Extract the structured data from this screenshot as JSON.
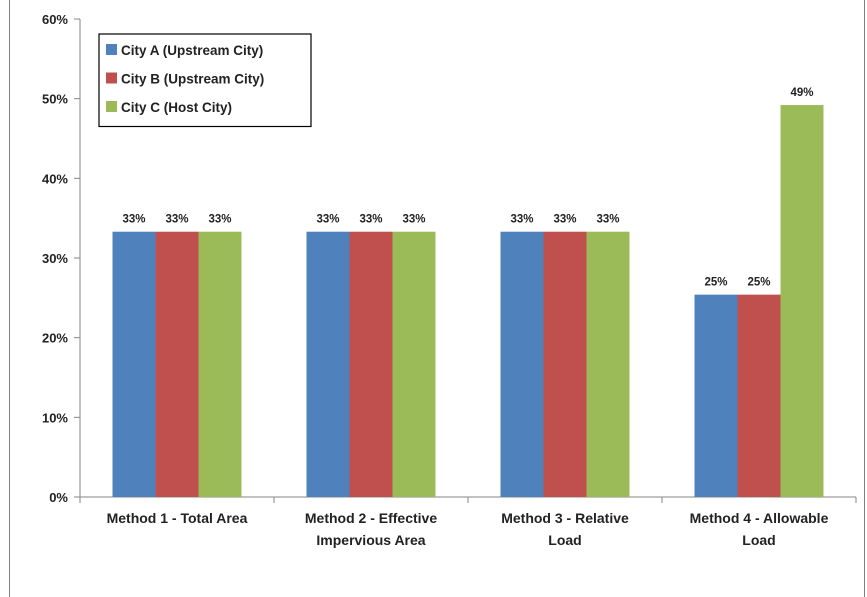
{
  "chart_data": {
    "type": "bar",
    "title": "",
    "xlabel": "",
    "ylabel": "",
    "ylim": [
      0,
      0.6
    ],
    "y_ticks": [
      "0%",
      "10%",
      "20%",
      "30%",
      "40%",
      "50%",
      "60%"
    ],
    "categories": [
      [
        "Method 1 - Total Area"
      ],
      [
        "Method 2 - Effective",
        "Impervious Area"
      ],
      [
        "Method 3 - Relative",
        "Load"
      ],
      [
        "Method 4 - Allowable",
        "Load"
      ]
    ],
    "series": [
      {
        "name": "City A (Upstream City)",
        "color": "#4f81bd",
        "values": [
          0.333,
          0.333,
          0.333,
          0.254
        ],
        "labels": [
          "33%",
          "33%",
          "33%",
          "25%"
        ]
      },
      {
        "name": "City B (Upstream City)",
        "color": "#c0504d",
        "values": [
          0.333,
          0.333,
          0.333,
          0.254
        ],
        "labels": [
          "33%",
          "33%",
          "33%",
          "25%"
        ]
      },
      {
        "name": "City C (Host City)",
        "color": "#9bbb59",
        "values": [
          0.333,
          0.333,
          0.333,
          0.492
        ],
        "labels": [
          "33%",
          "33%",
          "33%",
          "49%"
        ]
      }
    ],
    "grid": false,
    "legend_position": "top-left"
  }
}
